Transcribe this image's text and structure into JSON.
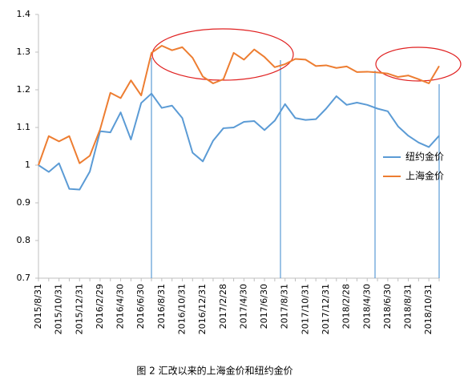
{
  "chart_data": {
    "type": "line",
    "categories": [
      "2015/8/31",
      null,
      "2015/10/31",
      null,
      "2015/12/31",
      null,
      "2016/2/29",
      null,
      "2016/4/30",
      null,
      "2016/6/30",
      null,
      "2016/8/31",
      null,
      "2016/10/31",
      null,
      "2016/12/31",
      null,
      "2017/2/28",
      null,
      "2017/4/30",
      null,
      "2017/6/30",
      null,
      "2017/8/31",
      null,
      "2017/10/31",
      null,
      "2017/12/31",
      null,
      "2018/2/28",
      null,
      "2018/4/30",
      null,
      "2018/6/30",
      null,
      "2018/8/31",
      null,
      "2018/10/31",
      null
    ],
    "series": [
      {
        "name": "纽约金价",
        "color": "#5b9bd5",
        "values": [
          1.0,
          0.982,
          1.005,
          0.937,
          0.935,
          0.983,
          1.09,
          1.087,
          1.14,
          1.068,
          1.165,
          1.19,
          1.152,
          1.158,
          1.125,
          1.033,
          1.01,
          1.065,
          1.098,
          1.1,
          1.115,
          1.117,
          1.093,
          1.118,
          1.162,
          1.125,
          1.12,
          1.122,
          1.15,
          1.183,
          1.16,
          1.166,
          1.16,
          1.15,
          1.143,
          1.103,
          1.078,
          1.06,
          1.048,
          1.078
        ]
      },
      {
        "name": "上海金价",
        "color": "#ed7d31",
        "values": [
          1.0,
          1.077,
          1.063,
          1.077,
          1.005,
          1.025,
          1.095,
          1.192,
          1.178,
          1.225,
          1.185,
          1.298,
          1.317,
          1.305,
          1.313,
          1.285,
          1.235,
          1.217,
          1.228,
          1.298,
          1.28,
          1.307,
          1.287,
          1.26,
          1.268,
          1.282,
          1.28,
          1.263,
          1.265,
          1.258,
          1.262,
          1.247,
          1.248,
          1.246,
          1.243,
          1.234,
          1.238,
          1.228,
          1.217,
          1.263
        ]
      }
    ],
    "ylim": [
      0.7,
      1.4
    ],
    "yticks": [
      0.7,
      0.8,
      0.9,
      1,
      1.1,
      1.2,
      1.3,
      1.4
    ],
    "grid": false,
    "legend": "right",
    "caption": "图 2  汇改以来的上海金价和纽约金价"
  }
}
